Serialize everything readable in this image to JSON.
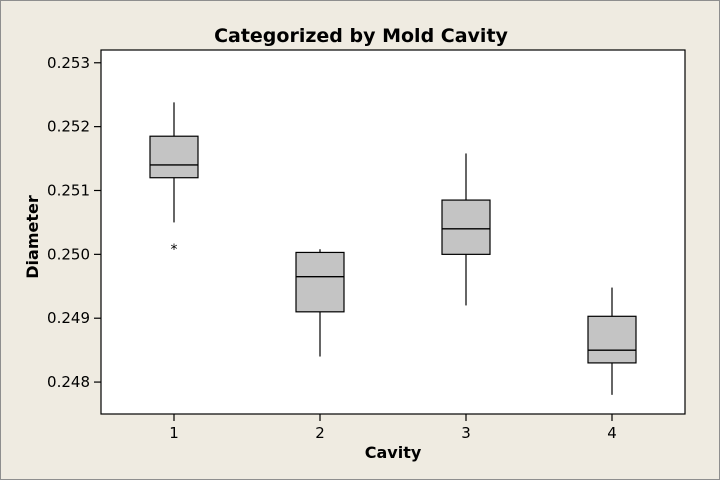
{
  "colors": {
    "background": "#efebe1",
    "plot_background": "#ffffff",
    "axis": "#000000",
    "box_fill": "#c4c4c4",
    "box_stroke": "#000000"
  },
  "chart_data": {
    "type": "boxplot",
    "title": "Categorized by Mold Cavity",
    "xlabel": "Cavity",
    "ylabel": "Diameter",
    "categories": [
      "1",
      "2",
      "3",
      "4"
    ],
    "ylim": [
      0.2475,
      0.2532
    ],
    "yticks": [
      "0.253",
      "0.252",
      "0.251",
      "0.250",
      "0.249",
      "0.248"
    ],
    "boxes": [
      {
        "category": "1",
        "min": 0.2505,
        "q1": 0.2512,
        "median": 0.2514,
        "q3": 0.25185,
        "max": 0.25238,
        "outliers": [
          0.2501
        ]
      },
      {
        "category": "2",
        "min": 0.2484,
        "q1": 0.2491,
        "median": 0.24965,
        "q3": 0.25003,
        "max": 0.25008,
        "outliers": []
      },
      {
        "category": "3",
        "min": 0.2492,
        "q1": 0.25,
        "median": 0.2504,
        "q3": 0.25085,
        "max": 0.25158,
        "outliers": []
      },
      {
        "category": "4",
        "min": 0.2478,
        "q1": 0.2483,
        "median": 0.2485,
        "q3": 0.24903,
        "max": 0.24948,
        "outliers": []
      }
    ],
    "grid": false,
    "legend": "none"
  }
}
